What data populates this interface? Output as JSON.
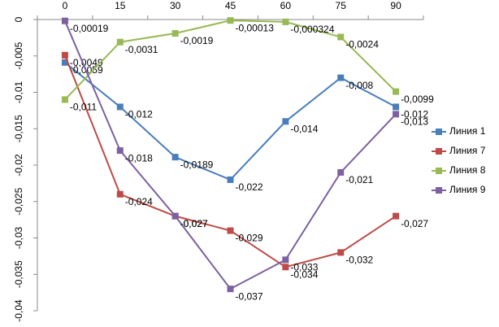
{
  "chart_data": {
    "type": "line",
    "categories": [
      "0",
      "15",
      "30",
      "45",
      "60",
      "75",
      "90"
    ],
    "ylim": [
      -0.04,
      0
    ],
    "yticks": [
      0,
      {
        "value": -0.005,
        "label": "-0,005"
      },
      {
        "value": -0.01,
        "label": "-0,01"
      },
      {
        "value": -0.015,
        "label": "-0,015"
      },
      {
        "value": -0.02,
        "label": "-0,02"
      },
      {
        "value": -0.025,
        "label": "-0,025"
      },
      {
        "value": -0.03,
        "label": "-0,03"
      },
      {
        "value": -0.035,
        "label": "-0,035"
      },
      {
        "value": -0.04,
        "label": "-0,04"
      }
    ],
    "legend": "right",
    "series": [
      {
        "name": "Линия 1",
        "color": "#4a7ebb",
        "values": [
          -0.0059,
          -0.012,
          -0.0189,
          -0.022,
          -0.014,
          -0.008,
          -0.012
        ],
        "value_labels": [
          "-0,0059",
          "-0,012",
          "-0,0189",
          "-0,022",
          "-0,014",
          "-0,008",
          "-0,012"
        ]
      },
      {
        "name": "Линия 7",
        "color": "#be4b48",
        "values": [
          -0.0049,
          -0.024,
          -0.027,
          -0.029,
          -0.034,
          -0.032,
          -0.027
        ],
        "value_labels": [
          "-0,0049",
          "-0,024",
          "-0,027",
          "-0,029",
          "-0,034",
          "-0,032",
          "-0,027"
        ]
      },
      {
        "name": "Линия 8",
        "color": "#98b954",
        "values": [
          -0.011,
          -0.0031,
          -0.0019,
          -0.00013,
          -0.000324,
          -0.0024,
          -0.0099
        ],
        "value_labels": [
          "-0,011",
          "-0,0031",
          "-0,0019",
          "-0,00013",
          "-0,000324",
          "-0,0024",
          "-0,0099"
        ]
      },
      {
        "name": "Линия 9",
        "color": "#7d60a0",
        "values": [
          -0.00019,
          -0.018,
          -0.027,
          -0.037,
          -0.033,
          -0.021,
          -0.013
        ],
        "value_labels": [
          "-0,00019",
          "-0,018",
          "-0,027",
          "-0,037",
          "-0,033",
          "-0,021",
          "-0,013"
        ]
      }
    ]
  }
}
